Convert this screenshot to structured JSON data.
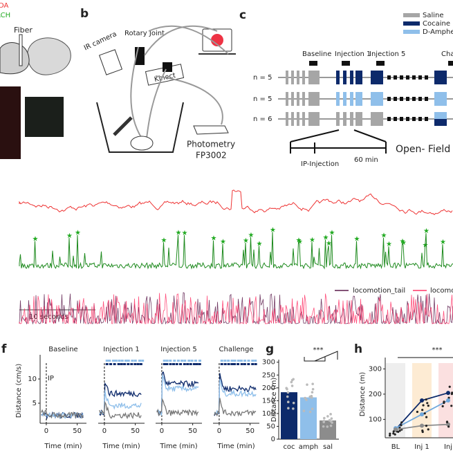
{
  "panel_a": {
    "labels": [
      "DA",
      "ACH",
      "Fiber"
    ]
  },
  "panel_b": {
    "label": "b",
    "rotary_joint": "Rotary Joint",
    "ir_camera": "IR camera",
    "kinect": "Kinect",
    "photometry": "Photometry",
    "device": "FP3002"
  },
  "panel_c": {
    "label": "c",
    "legend": [
      {
        "name": "Saline",
        "color": "#a6a6a6"
      },
      {
        "name": "Cocaine",
        "color": "#0d2a6b"
      },
      {
        "name": "D-Amphetamine",
        "color": "#8fbfea"
      }
    ],
    "phases": [
      "Baseline",
      "Injection 1",
      "Injection 5",
      "Challenge"
    ],
    "rows": [
      "n = 5",
      "n = 5",
      "n = 6"
    ],
    "open_field": "Open- Field",
    "ip_injection": "IP-Injection",
    "duration": "60 min"
  },
  "traces": {
    "legend": [
      "locomotion_tail",
      "locomotion"
    ],
    "scale_bar": "10 seconds"
  },
  "panel_f": {
    "label": "f",
    "titles": [
      "Baseline",
      "Injection 1",
      "Injection 5",
      "Challenge"
    ],
    "ylabel": "Distance (cm/s)",
    "xlabel": "Time (min)",
    "ylim": [
      0,
      15
    ],
    "yticks": [
      5,
      10
    ],
    "xlim": [
      -10,
      65
    ],
    "xticks": [
      0,
      50
    ],
    "marker": "IP"
  },
  "panel_g": {
    "label": "g",
    "type": "bar",
    "categories": [
      "coc",
      "amph",
      "sal"
    ],
    "values": [
      183,
      163,
      73
    ],
    "colors": [
      "#0d2a6b",
      "#8fbfea",
      "#8c8c8c"
    ],
    "ylabel": "Distance (m)",
    "ylim": [
      0,
      310
    ],
    "yticks": [
      0,
      50,
      100,
      150,
      200,
      250,
      300
    ],
    "significance": "***"
  },
  "panel_h": {
    "label": "h",
    "type": "line",
    "categories": [
      "BL",
      "Inj 1",
      "Inj"
    ],
    "series": [
      {
        "name": "Cocaine",
        "color": "#0d2a6b",
        "values": [
          60,
          175,
          205
        ]
      },
      {
        "name": "D-Amphetamine",
        "color": "#6fa8dc",
        "values": [
          65,
          120,
          175
        ]
      },
      {
        "name": "Saline",
        "color": "#8c8c8c",
        "values": [
          60,
          75,
          80
        ]
      }
    ],
    "ylabel": "Distance (m)",
    "ylim": [
      27,
      345
    ],
    "yticks": [
      100,
      200,
      300
    ],
    "significance": "***"
  }
}
